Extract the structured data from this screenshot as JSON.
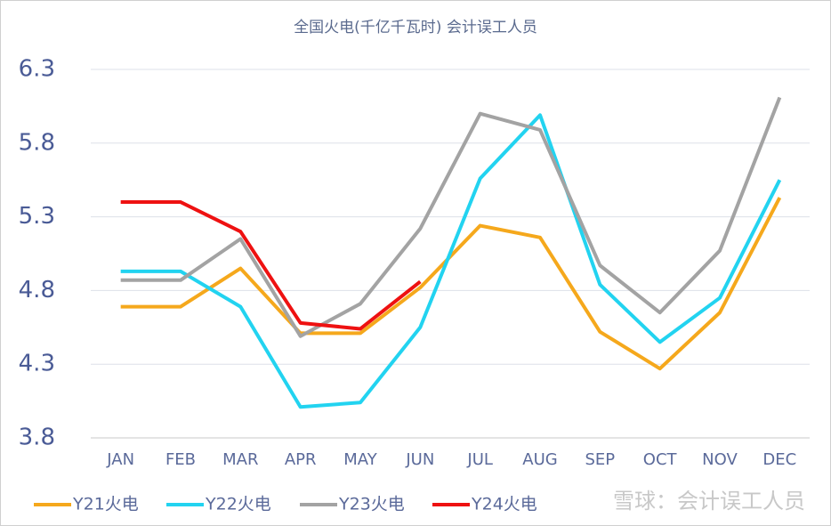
{
  "chart_data": {
    "type": "line",
    "title": "全国火电(千亿千瓦时)  会计误工人员",
    "categories": [
      "JAN",
      "FEB",
      "MAR",
      "APR",
      "MAY",
      "JUN",
      "JUL",
      "AUG",
      "SEP",
      "OCT",
      "NOV",
      "DEC"
    ],
    "series": [
      {
        "name": "Y21火电",
        "color": "#f5a81c",
        "values": [
          4.69,
          4.69,
          4.95,
          4.51,
          4.51,
          4.82,
          5.24,
          5.16,
          4.52,
          4.27,
          4.65,
          5.43
        ]
      },
      {
        "name": "Y22火电",
        "color": "#22d3f0",
        "values": [
          4.93,
          4.93,
          4.69,
          4.01,
          4.04,
          4.55,
          5.56,
          5.99,
          4.84,
          4.45,
          4.75,
          5.55
        ]
      },
      {
        "name": "Y23火电",
        "color": "#a3a3a3",
        "values": [
          4.87,
          4.87,
          5.15,
          4.49,
          4.71,
          5.22,
          6.0,
          5.89,
          4.97,
          4.65,
          5.07,
          6.11
        ]
      },
      {
        "name": "Y24火电",
        "color": "#ee1111",
        "values": [
          5.4,
          5.4,
          5.2,
          4.58,
          4.54,
          4.86,
          null,
          null,
          null,
          null,
          null,
          null
        ]
      }
    ],
    "ylim": [
      3.8,
      6.3
    ],
    "yticks": [
      3.8,
      4.3,
      4.8,
      5.3,
      5.8,
      6.3
    ],
    "grid": true,
    "legend": "bottom",
    "annotation": "雪球：会计误工人员"
  }
}
